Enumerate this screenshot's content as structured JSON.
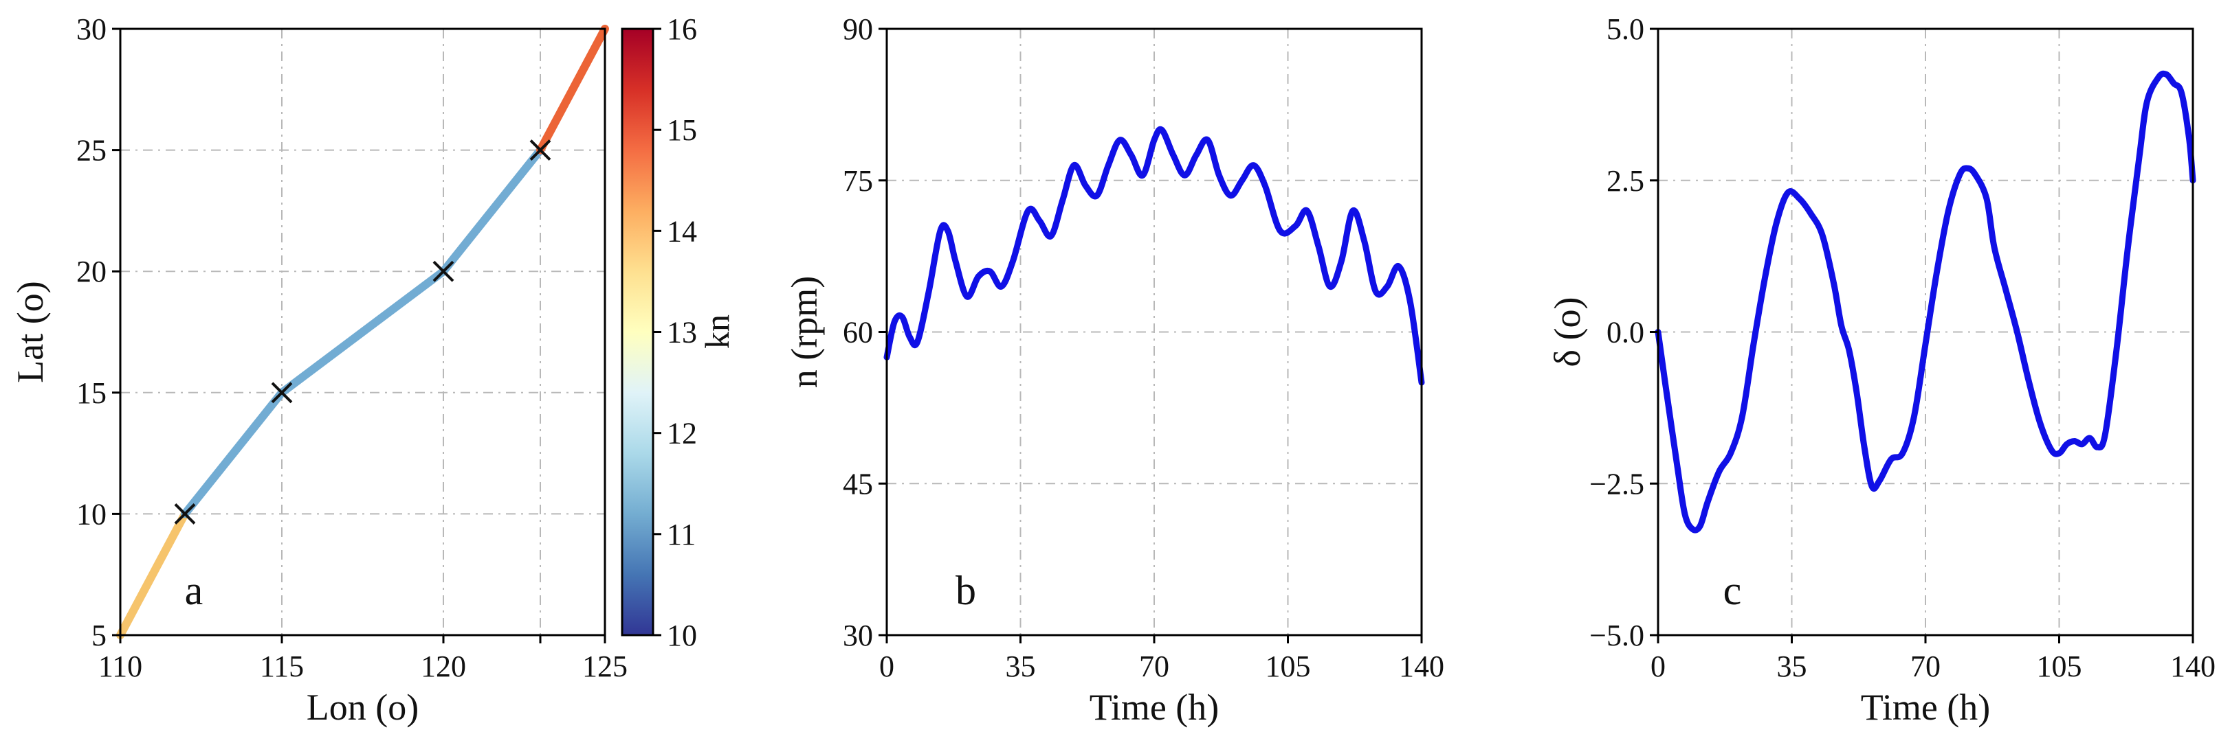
{
  "chart_data": [
    {
      "type": "line",
      "panel_label": "a",
      "xlabel": "Lon (o)",
      "ylabel": "Lat (o)",
      "xlim": [
        110,
        125
      ],
      "ylim": [
        5,
        30
      ],
      "xticks": [
        110,
        115,
        120,
        123,
        125
      ],
      "xtick_labels": [
        "110",
        "115",
        "120",
        "",
        "125"
      ],
      "yticks": [
        5,
        10,
        15,
        20,
        25,
        30
      ],
      "grid": true,
      "route": {
        "segments": [
          {
            "from": [
              110,
              5
            ],
            "to": [
              112,
              10
            ],
            "speed_kn": 13.3,
            "color": "#f6c46c"
          },
          {
            "from": [
              112,
              10
            ],
            "to": [
              115,
              15
            ],
            "speed_kn": 11.5,
            "color": "#72acd3"
          },
          {
            "from": [
              115,
              15
            ],
            "to": [
              120,
              20
            ],
            "speed_kn": 11.5,
            "color": "#72acd3"
          },
          {
            "from": [
              120,
              20
            ],
            "to": [
              123,
              25
            ],
            "speed_kn": 11.5,
            "color": "#72acd3"
          },
          {
            "from": [
              123,
              25
            ],
            "to": [
              125,
              30
            ],
            "speed_kn": 14.6,
            "color": "#ec6436"
          }
        ],
        "waypoints": [
          [
            112,
            10
          ],
          [
            115,
            15
          ],
          [
            120,
            20
          ],
          [
            123,
            25
          ]
        ],
        "waypoint_marker": "x"
      },
      "colorbar": {
        "label": "kn",
        "range": [
          10,
          16
        ],
        "ticks": [
          10,
          11,
          12,
          13,
          14,
          15,
          16
        ],
        "colormap": "RdYlBu_r",
        "stops": [
          "#313695",
          "#4575b4",
          "#74add1",
          "#abd9e9",
          "#e0f3f8",
          "#ffffbf",
          "#fee090",
          "#fdae61",
          "#f46d43",
          "#d73027",
          "#a50026"
        ]
      }
    },
    {
      "type": "line",
      "panel_label": "b",
      "xlabel": "Time (h)",
      "ylabel": "n (rpm)",
      "xlim": [
        0,
        140
      ],
      "ylim": [
        30,
        90
      ],
      "xticks": [
        0,
        35,
        70,
        105,
        140
      ],
      "yticks": [
        30,
        45,
        60,
        75,
        90
      ],
      "grid": true,
      "series": [
        {
          "color": "#1010e6",
          "x": [
            0,
            2,
            4,
            6,
            8,
            11,
            14,
            16,
            18,
            21,
            24,
            27,
            30,
            33,
            37,
            40,
            43,
            46,
            49,
            52,
            55,
            58,
            61,
            64,
            67,
            70,
            72,
            75,
            78,
            81,
            84,
            87,
            90,
            93,
            96,
            99,
            103,
            107,
            110,
            113,
            116,
            119,
            122,
            125,
            128,
            131,
            134,
            137,
            140
          ],
          "y": [
            57.5,
            61,
            61.5,
            59.5,
            59,
            64,
            70,
            70,
            67,
            63.5,
            65.5,
            66,
            64.5,
            67,
            72,
            71,
            69.5,
            73,
            76.5,
            74.5,
            73.5,
            76.5,
            79,
            77.5,
            75.5,
            79,
            80,
            77.5,
            75.5,
            77.5,
            79,
            75.5,
            73.5,
            75,
            76.5,
            74.5,
            70,
            70.5,
            72,
            68.5,
            64.5,
            67,
            72,
            69,
            64,
            64.5,
            66.5,
            63,
            55
          ]
        }
      ]
    },
    {
      "type": "line",
      "panel_label": "c",
      "xlabel": "Time (h)",
      "ylabel": "δ (o)",
      "xlim": [
        0,
        140
      ],
      "ylim": [
        -5.0,
        5.0
      ],
      "xticks": [
        0,
        35,
        70,
        105,
        140
      ],
      "yticks": [
        -5.0,
        -2.5,
        0.0,
        2.5,
        5.0
      ],
      "ytick_labels": [
        "−5.0",
        "−2.5",
        "0.0",
        "2.5",
        "5.0"
      ],
      "grid": true,
      "series": [
        {
          "color": "#1010e6",
          "x": [
            0,
            2,
            5,
            7,
            9,
            11,
            13,
            16,
            19,
            22,
            25,
            28,
            31,
            34,
            37,
            40,
            43,
            46,
            48,
            50,
            52,
            54,
            56,
            58,
            61,
            64,
            67,
            70,
            73,
            76,
            79,
            81,
            83,
            86,
            88,
            91,
            94,
            97,
            100,
            103,
            105,
            107,
            109,
            111,
            113,
            115,
            117,
            120,
            123,
            126,
            128,
            131,
            133,
            135,
            137,
            139,
            140
          ],
          "y": [
            0,
            -0.9,
            -2.2,
            -3.0,
            -3.25,
            -3.2,
            -2.8,
            -2.3,
            -2.0,
            -1.4,
            -0.2,
            0.9,
            1.8,
            2.3,
            2.2,
            1.95,
            1.6,
            0.8,
            0.1,
            -0.3,
            -1.0,
            -1.9,
            -2.55,
            -2.45,
            -2.1,
            -2.0,
            -1.4,
            -0.2,
            1.0,
            2.0,
            2.6,
            2.7,
            2.6,
            2.2,
            1.4,
            0.7,
            0.0,
            -0.8,
            -1.5,
            -1.95,
            -2.0,
            -1.85,
            -1.8,
            -1.85,
            -1.75,
            -1.9,
            -1.7,
            -0.3,
            1.4,
            2.9,
            3.8,
            4.2,
            4.25,
            4.1,
            3.95,
            3.2,
            2.5
          ]
        }
      ]
    }
  ]
}
